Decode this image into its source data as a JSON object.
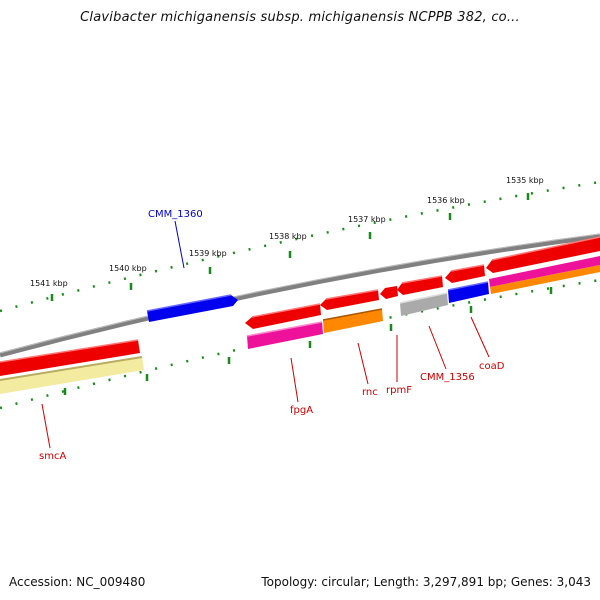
{
  "title": "Clavibacter michiganensis subsp. michiganensis NCPPB 382, co...",
  "footer": {
    "accession": "Accession: NC_009480",
    "summary": "Topology: circular; Length: 3,297,891 bp; Genes: 3,043"
  },
  "scale_labels": [
    "1541 kbp",
    "1540 kbp",
    "1539 kbp",
    "1538 kbp",
    "1537 kbp",
    "1536 kbp",
    "1535 kbp"
  ],
  "gene_labels": [
    {
      "text": "CMM_1360",
      "color": "#0000cc"
    },
    {
      "text": "fpgA",
      "color": "#cc0000"
    },
    {
      "text": "rnc",
      "color": "#cc0000"
    },
    {
      "text": "rpmF",
      "color": "#cc0000"
    },
    {
      "text": "CMM_1356",
      "color": "#cc0000"
    },
    {
      "text": "coaD",
      "color": "#cc0000"
    },
    {
      "text": "smcA",
      "color": "#cc0000"
    }
  ],
  "colors": {
    "backbone": "#888888",
    "tick": "#1a8a1a",
    "cds_red": "#ee0000",
    "cds_blue": "#0000ee",
    "cds_magenta": "#ee1199",
    "cds_orange": "#ff8800",
    "cds_gray": "#aaaaaa",
    "cds_pale_yellow": "#f3eca0"
  }
}
